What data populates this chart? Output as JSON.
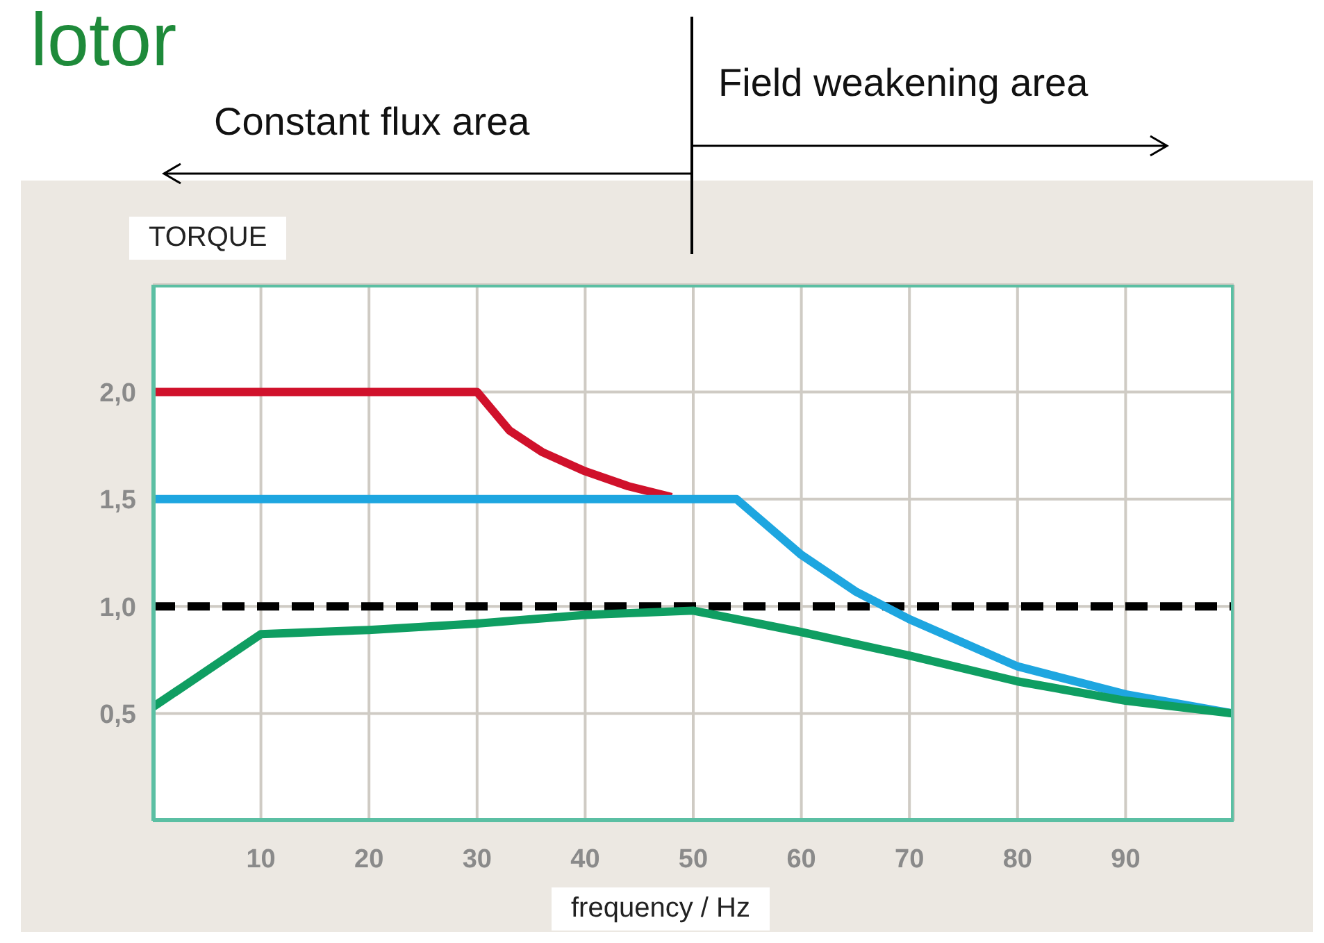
{
  "chart_data": {
    "type": "line",
    "title": "lotor",
    "xlabel": "frequency / Hz",
    "ylabel": "TORQUE",
    "annotations": [
      "Constant flux area",
      "Field weakening area"
    ],
    "xlim": [
      0,
      100
    ],
    "xticks": [
      10,
      20,
      30,
      40,
      50,
      60,
      70,
      80,
      90
    ],
    "ylim": [
      0,
      2.5
    ],
    "yticks": [
      {
        "value": 0.5,
        "label": "0,5"
      },
      {
        "value": 1.0,
        "label": "1,0"
      },
      {
        "value": 1.5,
        "label": "1,5"
      },
      {
        "value": 2.0,
        "label": "2,0"
      }
    ],
    "grid": true,
    "ref_lines": [
      {
        "axis": "y",
        "value": 1.0,
        "color": "#000000",
        "line_style": "dashed"
      }
    ],
    "series": [
      {
        "color": "#d0112b",
        "x": [
          0,
          30,
          33,
          36,
          40,
          44,
          48
        ],
        "values": [
          2.0,
          2.0,
          1.82,
          1.72,
          1.63,
          1.56,
          1.51
        ]
      },
      {
        "color": "#1ea6e0",
        "x": [
          0,
          54,
          60,
          65,
          70,
          80,
          90,
          100
        ],
        "values": [
          1.5,
          1.5,
          1.24,
          1.07,
          0.94,
          0.72,
          0.59,
          0.5
        ]
      },
      {
        "color": "#0f9e62",
        "x": [
          0,
          10,
          20,
          30,
          40,
          50,
          60,
          70,
          80,
          90,
          100
        ],
        "values": [
          0.53,
          0.87,
          0.89,
          0.92,
          0.96,
          0.98,
          0.88,
          0.77,
          0.65,
          0.56,
          0.5
        ]
      }
    ]
  }
}
